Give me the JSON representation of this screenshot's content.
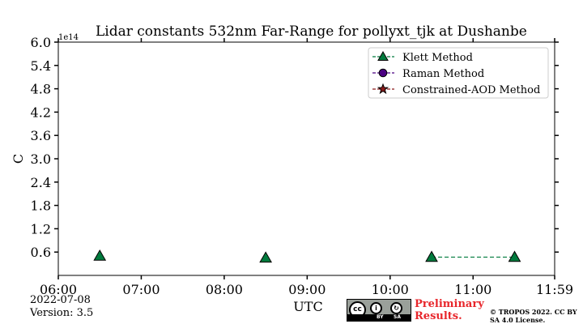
{
  "chart_data": {
    "type": "scatter",
    "title": "Lidar constants 532nm Far-Range for pollyxt_tjk at Dushanbe",
    "xlabel": "UTC",
    "ylabel": "C",
    "y_multiplier_label": "1e14",
    "xlim": [
      "06:00",
      "11:59"
    ],
    "ylim": [
      0,
      6.0
    ],
    "x_ticks": [
      "06:00",
      "07:00",
      "08:00",
      "09:00",
      "10:00",
      "11:00",
      "11:59"
    ],
    "y_ticks": [
      "0.6",
      "1.2",
      "1.8",
      "2.4",
      "3.0",
      "3.6",
      "4.2",
      "4.8",
      "5.4",
      "6.0"
    ],
    "grid": false,
    "legend_position": "top-right",
    "series": [
      {
        "name": "Klett Method",
        "marker": "triangle",
        "color": "#007a3d",
        "line": "dashed",
        "points": [
          {
            "x": "06:30",
            "y": 0.5
          },
          {
            "x": "08:30",
            "y": 0.45
          },
          {
            "x": "10:30",
            "y": 0.47
          },
          {
            "x": "11:30",
            "y": 0.47
          }
        ],
        "connected": [
          [
            2,
            3
          ]
        ]
      },
      {
        "name": "Raman Method",
        "marker": "circle",
        "color": "#4b0082",
        "line": "dashed",
        "points": []
      },
      {
        "name": "Constrained-AOD Method",
        "marker": "star",
        "color": "#8b1a1a",
        "line": "dashed",
        "points": []
      }
    ]
  },
  "footer": {
    "date": "2022-07-08",
    "version": "Version: 3.5",
    "preliminary": "Preliminary Results.",
    "copyright": "© TROPOS 2022. CC BY SA 4.0 License.",
    "badge_cc": "cc",
    "badge_by": "BY",
    "badge_sa": "SA"
  }
}
